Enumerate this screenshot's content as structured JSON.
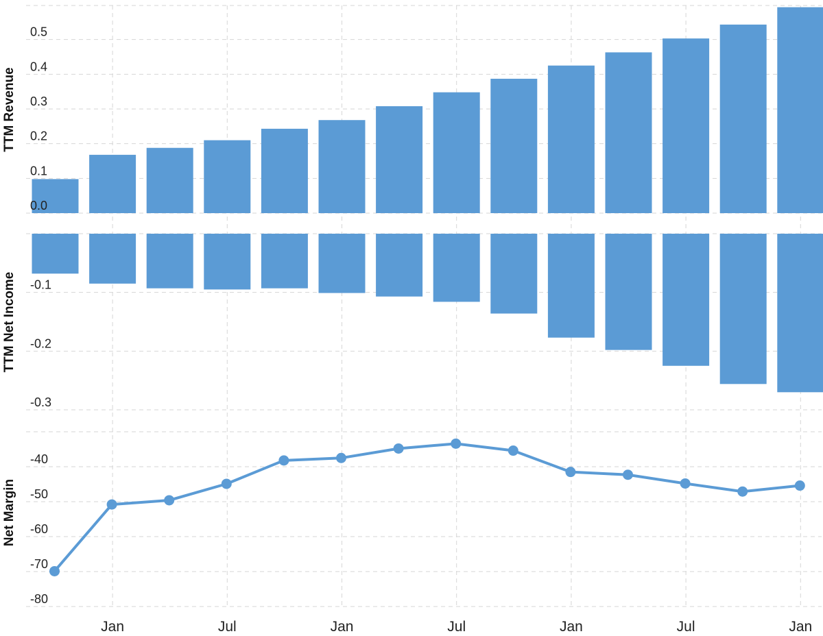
{
  "chart_data": [
    {
      "type": "bar",
      "ylabel": "TTM Revenue",
      "ylim": [
        0,
        0.6
      ],
      "yticks": [
        "0.0",
        "0.1",
        "0.2",
        "0.3",
        "0.4",
        "0.5"
      ],
      "grid": true,
      "color": "#5b9bd5",
      "values": [
        0.098,
        0.168,
        0.188,
        0.21,
        0.243,
        0.268,
        0.308,
        0.348,
        0.387,
        0.425,
        0.463,
        0.503,
        0.543,
        0.593
      ]
    },
    {
      "type": "bar",
      "ylabel": "TTM Net Income",
      "ylim": [
        -0.3,
        0
      ],
      "yticks": [
        "-0.1",
        "-0.2",
        "-0.3"
      ],
      "grid": true,
      "color": "#5b9bd5",
      "values": [
        -0.068,
        -0.085,
        -0.093,
        -0.095,
        -0.093,
        -0.101,
        -0.107,
        -0.116,
        -0.136,
        -0.177,
        -0.198,
        -0.225,
        -0.256,
        -0.27
      ]
    },
    {
      "type": "line",
      "ylabel": "Net Margin",
      "ylim": [
        -80,
        -30
      ],
      "yticks": [
        "-40",
        "-50",
        "-60",
        "-70",
        "-80"
      ],
      "grid": true,
      "color": "#5b9bd5",
      "values": [
        -69.9,
        -50.8,
        -49.6,
        -44.9,
        -38.2,
        -37.5,
        -34.8,
        -33.4,
        -35.4,
        -41.5,
        -42.3,
        -44.8,
        -47.1,
        -45.4
      ]
    }
  ],
  "x_axis": {
    "ticks": [
      "Jan",
      "Jul",
      "Jan",
      "Jul",
      "Jan",
      "Jul",
      "Jan"
    ]
  }
}
